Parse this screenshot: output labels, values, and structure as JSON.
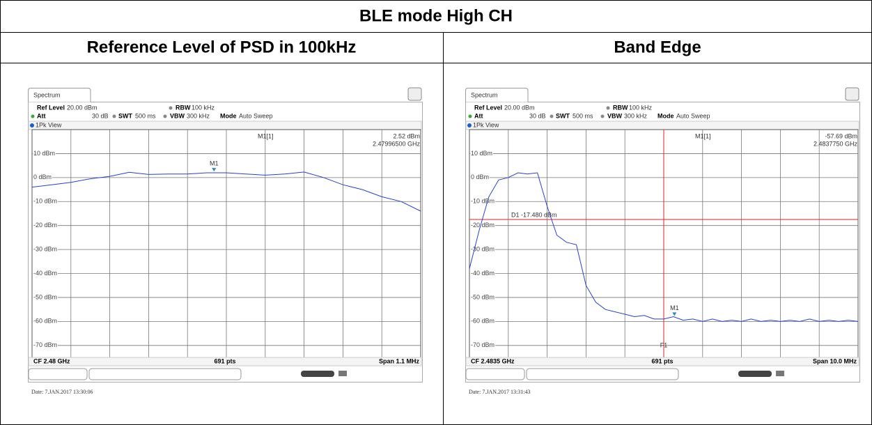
{
  "title": "BLE mode High CH",
  "panels": [
    {
      "heading": "Reference Level of PSD in 100kHz",
      "tab": "Spectrum",
      "ref_level_label": "Ref Level",
      "ref_level": "20.00 dBm",
      "rbw_label": "RBW",
      "rbw": "100 kHz",
      "att_label": "Att",
      "att": "30 dB",
      "swt_label": "SWT",
      "swt": "500 ms",
      "vbw_label": "VBW",
      "vbw": "300 kHz",
      "mode_label": "Mode",
      "mode": "Auto Sweep",
      "view": "1Pk View",
      "marker_readout": "M1[1]",
      "marker": {
        "name": "M1",
        "level": 2.52,
        "level_label": "2.52 dBm",
        "freq_ghz": 2.479965,
        "freq_label": "2.47996500 GHz"
      },
      "center_ghz": 2.48,
      "center_label": "CF 2.48 GHz",
      "points_label": "691 pts",
      "span_mhz": 1.1,
      "span_label": "Span 1.1 MHz",
      "date": "Date: 7.JAN.2017 13:30:06",
      "ylim": [
        -75,
        20
      ],
      "yticks": [
        {
          "value": 10,
          "label": "10 dBm"
        },
        {
          "value": 0,
          "label": "0 dBm"
        },
        {
          "value": -10,
          "label": "-10 dBm"
        },
        {
          "value": -20,
          "label": "-20 dBm"
        },
        {
          "value": -30,
          "label": "-30 dBm"
        },
        {
          "value": -40,
          "label": "-40 dBm"
        },
        {
          "value": -50,
          "label": "-50 dBm"
        },
        {
          "value": -60,
          "label": "-60 dBm"
        },
        {
          "value": -70,
          "label": "-70 dBm"
        }
      ],
      "trace": [
        -4,
        -3,
        -2,
        -0.5,
        0.5,
        2.2,
        1.3,
        1.5,
        1.5,
        2,
        2,
        1.5,
        1,
        1.5,
        2.3,
        0,
        -3,
        -5,
        -8,
        -10,
        -14
      ]
    },
    {
      "heading": "Band Edge",
      "tab": "Spectrum",
      "ref_level_label": "Ref Level",
      "ref_level": "20.00 dBm",
      "rbw_label": "RBW",
      "rbw": "100 kHz",
      "att_label": "Att",
      "att": "30 dB",
      "swt_label": "SWT",
      "swt": "500 ms",
      "vbw_label": "VBW",
      "vbw": "300 kHz",
      "mode_label": "Mode",
      "mode": "Auto Sweep",
      "view": "1Pk View",
      "marker_readout": "M1[1]",
      "marker": {
        "name": "M1",
        "level": -57.69,
        "level_label": "-57.69 dBm",
        "freq_ghz": 2.483775,
        "freq_label": "2.4837750 GHz"
      },
      "d1": {
        "label": "D1 -17.480 dBm",
        "level": -17.48
      },
      "f1": {
        "label": "F1",
        "freq_ghz": 2.4835
      },
      "center_ghz": 2.4835,
      "center_label": "CF 2.4835 GHz",
      "points_label": "691 pts",
      "span_mhz": 10,
      "span_label": "Span 10.0 MHz",
      "date": "Date: 7.JAN.2017 13:31:43",
      "ylim": [
        -75,
        20
      ],
      "yticks": [
        {
          "value": 10,
          "label": "10 dBm"
        },
        {
          "value": 0,
          "label": "0 dBm"
        },
        {
          "value": -10,
          "label": "-10 dBm"
        },
        {
          "value": -20,
          "label": "-20 dBm"
        },
        {
          "value": -30,
          "label": "-30 dBm"
        },
        {
          "value": -40,
          "label": "-40 dBm"
        },
        {
          "value": -50,
          "label": "-50 dBm"
        },
        {
          "value": -60,
          "label": "-60 dBm"
        },
        {
          "value": -70,
          "label": "-70 dBm"
        }
      ],
      "trace": [
        -38,
        -22,
        -8,
        -1,
        0,
        2,
        1.5,
        2,
        -12,
        -24,
        -27,
        -28,
        -45,
        -52,
        -55,
        -56,
        -57,
        -58,
        -57.5,
        -59,
        -59,
        -58,
        -59.5,
        -59,
        -60,
        -59,
        -60,
        -59.5,
        -60,
        -59,
        -60,
        -59.5,
        -60,
        -59.5,
        -60,
        -59,
        -60,
        -59.5,
        -60,
        -59.5,
        -60
      ]
    }
  ]
}
